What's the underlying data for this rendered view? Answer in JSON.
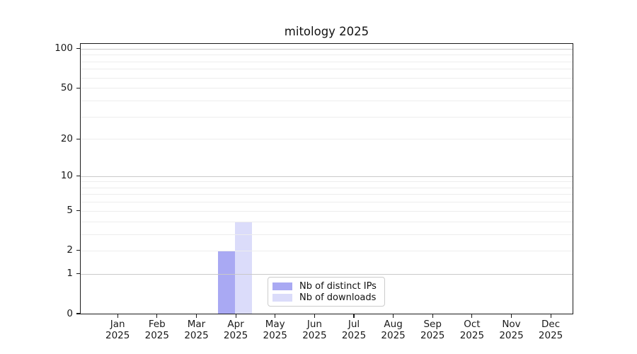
{
  "figure": {
    "title": "mitology 2025"
  },
  "chart_data": {
    "type": "bar",
    "title": "mitology 2025",
    "categories": [
      "Jan 2025",
      "Feb 2025",
      "Mar 2025",
      "Apr 2025",
      "May 2025",
      "Jun 2025",
      "Jul 2025",
      "Aug 2025",
      "Sep 2025",
      "Oct 2025",
      "Nov 2025",
      "Dec 2025"
    ],
    "series": [
      {
        "name": "Nb of distinct IPs",
        "color": "#a9a9f3",
        "values": [
          0,
          0,
          0,
          2,
          0,
          0,
          0,
          0,
          0,
          0,
          0,
          0
        ]
      },
      {
        "name": "Nb of downloads",
        "color": "#dbdcfa",
        "values": [
          0,
          0,
          0,
          4,
          0,
          0,
          0,
          0,
          0,
          0,
          0,
          0
        ]
      }
    ],
    "xlabel": "",
    "ylabel": "",
    "yscale": "log1p",
    "yticks": [
      0,
      1,
      2,
      5,
      10,
      20,
      50,
      100
    ],
    "major_gridlines": [
      1,
      10,
      100
    ],
    "minor_gridlines": [
      2,
      3,
      4,
      5,
      6,
      7,
      8,
      9,
      20,
      30,
      40,
      50,
      60,
      70,
      80,
      90
    ],
    "ylim": [
      0,
      112
    ],
    "grid": true,
    "legend_position": "lower center"
  },
  "colors": {
    "background": "#ffffff",
    "spine": "#1a1a1a",
    "text": "#1a1a1a",
    "major_grid": "#c9c9c9",
    "minor_grid": "#ededed",
    "legend_border": "#cccccc"
  }
}
